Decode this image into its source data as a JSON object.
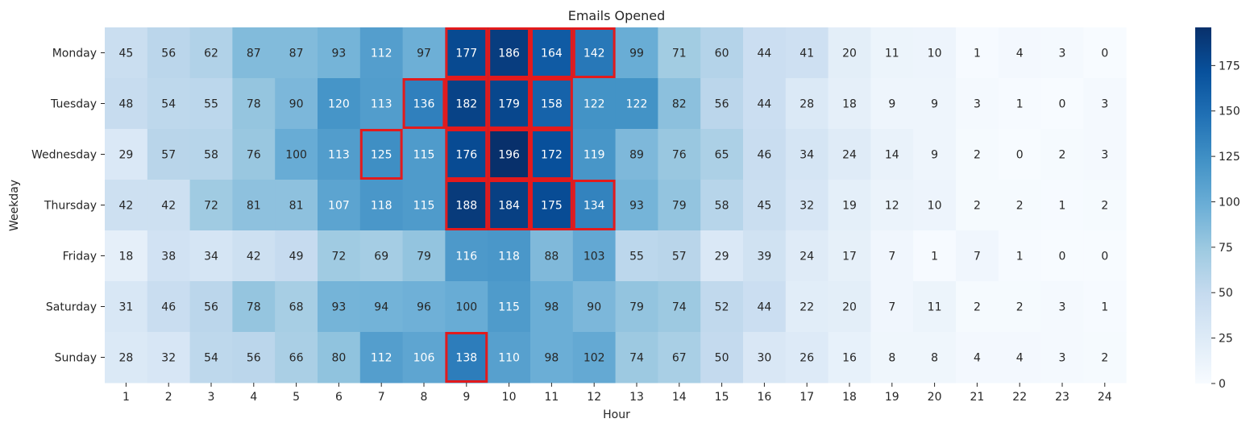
{
  "chart_data": {
    "type": "heatmap",
    "title": "Emails Opened",
    "xlabel": "Hour",
    "ylabel": "Weekday",
    "x_categories": [
      "1",
      "2",
      "3",
      "4",
      "5",
      "6",
      "7",
      "8",
      "9",
      "10",
      "11",
      "12",
      "13",
      "14",
      "15",
      "16",
      "17",
      "18",
      "19",
      "20",
      "21",
      "22",
      "23",
      "24"
    ],
    "y_categories": [
      "Monday",
      "Tuesday",
      "Wednesday",
      "Thursday",
      "Friday",
      "Saturday",
      "Sunday"
    ],
    "values": [
      [
        45,
        56,
        62,
        87,
        87,
        93,
        112,
        97,
        177,
        186,
        164,
        142,
        99,
        71,
        60,
        44,
        41,
        20,
        11,
        10,
        1,
        4,
        3,
        0
      ],
      [
        48,
        54,
        55,
        78,
        90,
        120,
        113,
        136,
        182,
        179,
        158,
        122,
        122,
        82,
        56,
        44,
        28,
        18,
        9,
        9,
        3,
        1,
        0,
        3
      ],
      [
        29,
        57,
        58,
        76,
        100,
        113,
        125,
        115,
        176,
        196,
        172,
        119,
        89,
        76,
        65,
        46,
        34,
        24,
        14,
        9,
        2,
        0,
        2,
        3
      ],
      [
        42,
        42,
        72,
        81,
        81,
        107,
        118,
        115,
        188,
        184,
        175,
        134,
        93,
        79,
        58,
        45,
        32,
        19,
        12,
        10,
        2,
        2,
        1,
        2
      ],
      [
        18,
        38,
        34,
        42,
        49,
        72,
        69,
        79,
        116,
        118,
        88,
        103,
        55,
        57,
        29,
        39,
        24,
        17,
        7,
        1,
        7,
        1,
        0,
        0
      ],
      [
        31,
        46,
        56,
        78,
        68,
        93,
        94,
        96,
        100,
        115,
        98,
        90,
        79,
        74,
        52,
        44,
        22,
        20,
        7,
        11,
        2,
        2,
        3,
        1
      ],
      [
        28,
        32,
        54,
        56,
        66,
        80,
        112,
        106,
        138,
        110,
        98,
        102,
        74,
        67,
        50,
        30,
        26,
        16,
        8,
        8,
        4,
        4,
        3,
        2
      ]
    ],
    "colorbar": {
      "cmap": "Blues",
      "vmin": 0,
      "vmax": 196,
      "ticks": [
        0,
        25,
        50,
        75,
        100,
        125,
        150,
        175
      ]
    },
    "highlighted_cells": [
      {
        "weekday": "Monday",
        "hours": [
          "9",
          "10",
          "11",
          "12"
        ]
      },
      {
        "weekday": "Tuesday",
        "hours": [
          "8",
          "9",
          "10",
          "11"
        ]
      },
      {
        "weekday": "Wednesday",
        "hours": [
          "7",
          "9",
          "10",
          "11"
        ]
      },
      {
        "weekday": "Thursday",
        "hours": [
          "9",
          "10",
          "11",
          "12"
        ]
      },
      {
        "weekday": "Sunday",
        "hours": [
          "9"
        ]
      }
    ],
    "highlight_color": "#e31a1c"
  }
}
